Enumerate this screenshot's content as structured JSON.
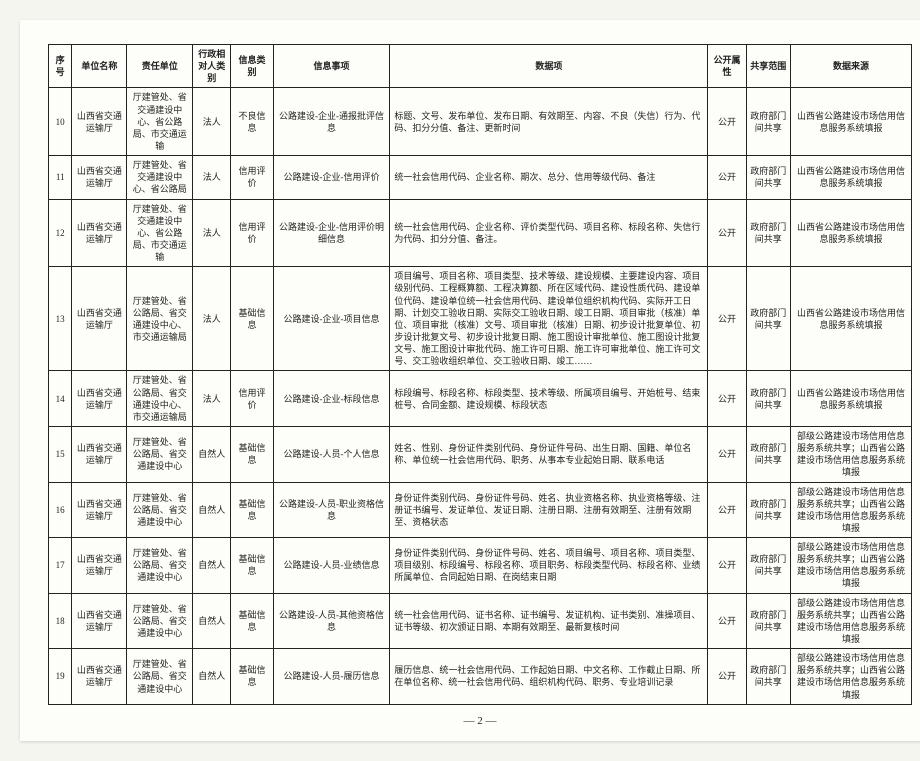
{
  "columns": [
    "序号",
    "单位名称",
    "责任单位",
    "行政相对人类别",
    "信息类别",
    "信息事项",
    "数据项",
    "公开属性",
    "共享范围",
    "数据来源"
  ],
  "rows": [
    {
      "seq": "10",
      "unit": "山西省交通运输厅",
      "resp": "厅建管处、省交通建设中心、省公路局、市交通运输",
      "ptype": "法人",
      "itype": "不良信息",
      "matter": "公路建设-企业-通报批评信息",
      "data": "标题、文号、发布单位、发布日期、有效期至、内容、不良（失信）行为、代码、扣分分值、备注、更新时间",
      "attr": "公开",
      "scope": "政府部门间共享",
      "src": "山西省公路建设市场信用信息服务系统填报"
    },
    {
      "seq": "11",
      "unit": "山西省交通运输厅",
      "resp": "厅建管处、省交通建设中心、省公路局",
      "ptype": "法人",
      "itype": "信用评价",
      "matter": "公路建设-企业-信用评价",
      "data": "统一社会信用代码、企业名称、期次、总分、信用等级代码、备注",
      "attr": "公开",
      "scope": "政府部门间共享",
      "src": "山西省公路建设市场信用信息服务系统填报"
    },
    {
      "seq": "12",
      "unit": "山西省交通运输厅",
      "resp": "厅建管处、省交通建设中心、省公路局、市交通运输",
      "ptype": "法人",
      "itype": "信用评价",
      "matter": "公路建设-企业-信用评价明细信息",
      "data": "统一社会信用代码、企业名称、评价类型代码、项目名称、标段名称、失信行为代码、扣分分值、备注。",
      "attr": "公开",
      "scope": "政府部门间共享",
      "src": "山西省公路建设市场信用信息服务系统填报"
    },
    {
      "seq": "13",
      "unit": "山西省交通运输厅",
      "resp": "厅建管处、省公路局、省交通建设中心、市交通运输局",
      "ptype": "法人",
      "itype": "基础信息",
      "matter": "公路建设-企业-项目信息",
      "data": "项目编号、项目名称、项目类型、技术等级、建设规模、主要建设内容、项目级别代码、工程概算额、工程决算额、所在区域代码、建设性质代码、建设单位代码、建设单位统一社会信用代码、建设单位组织机构代码、实际开工日期、计划交工验收日期、实际交工验收日期、竣工日期、项目审批（核准）单位、项目审批（核准）文号、项目审批（核准）日期、初步设计批复单位、初步设计批复文号、初步设计批复日期、施工图设计审批单位、施工图设计批复文号、施工图设计审批代码、施工许可日期、施工许可审批单位、施工许可文号、交工验收组织单位、交工验收日期、竣工……",
      "attr": "公开",
      "scope": "政府部门间共享",
      "src": "山西省公路建设市场信用信息服务系统填报"
    },
    {
      "seq": "14",
      "unit": "山西省交通运输厅",
      "resp": "厅建管处、省公路局、省交通建设中心、市交通运输局",
      "ptype": "法人",
      "itype": "信用评价",
      "matter": "公路建设-企业-标段信息",
      "data": "标段编号、标段名称、标段类型、技术等级、所属项目编号、开始桩号、结束桩号、合同金额、建设规模、标段状态",
      "attr": "公开",
      "scope": "政府部门间共享",
      "src": "山西省公路建设市场信用信息服务系统填报"
    },
    {
      "seq": "15",
      "unit": "山西省交通运输厅",
      "resp": "厅建管处、省公路局、省交通建设中心",
      "ptype": "自然人",
      "itype": "基础信息",
      "matter": "公路建设-人员-个人信息",
      "data": "姓名、性别、身份证件类别代码、身份证件号码、出生日期、国籍、单位名称、单位统一社会信用代码、职务、从事本专业起始日期、联系电话",
      "attr": "公开",
      "scope": "政府部门间共享",
      "src": "部级公路建设市场信用信息服务系统共享；山西省公路建设市场信用信息服务系统填报"
    },
    {
      "seq": "16",
      "unit": "山西省交通运输厅",
      "resp": "厅建管处、省公路局、省交通建设中心",
      "ptype": "自然人",
      "itype": "基础信息",
      "matter": "公路建设-人员-职业资格信息",
      "data": "身份证件类别代码、身份证件号码、姓名、执业资格名称、执业资格等级、注册证书编号、发证单位、发证日期、注册日期、注册有效期至、注册有效期至、资格状态",
      "attr": "公开",
      "scope": "政府部门间共享",
      "src": "部级公路建设市场信用信息服务系统共享；山西省公路建设市场信用信息服务系统填报"
    },
    {
      "seq": "17",
      "unit": "山西省交通运输厅",
      "resp": "厅建管处、省公路局、省交通建设中心",
      "ptype": "自然人",
      "itype": "基础信息",
      "matter": "公路建设-人员-业绩信息",
      "data": "身份证件类别代码、身份证件号码、姓名、项目编号、项目名称、项目类型、项目级别、标段编号、标段名称、项目职务、标段类型代码、标段名称、业绩所属单位、合同起始日期、在岗结束日期",
      "attr": "公开",
      "scope": "政府部门间共享",
      "src": "部级公路建设市场信用信息服务系统共享；山西省公路建设市场信用信息服务系统填报"
    },
    {
      "seq": "18",
      "unit": "山西省交通运输厅",
      "resp": "厅建管处、省公路局、省交通建设中心",
      "ptype": "自然人",
      "itype": "基础信息",
      "matter": "公路建设-人员-其他资格信息",
      "data": "统一社会信用代码、证书名称、证书编号、发证机构、证书类别、准操项目、证书等级、初次颁证日期、本期有效期至、最新复核时间",
      "attr": "公开",
      "scope": "政府部门间共享",
      "src": "部级公路建设市场信用信息服务系统共享；山西省公路建设市场信用信息服务系统填报"
    },
    {
      "seq": "19",
      "unit": "山西省交通运输厅",
      "resp": "厅建管处、省公路局、省交通建设中心",
      "ptype": "自然人",
      "itype": "基础信息",
      "matter": "公路建设-人员-履历信息",
      "data": "履历信息、统一社会信用代码、工作起始日期、中文名称、工作截止日期、所在单位名称、统一社会信用代码、组织机构代码、职务、专业培训记录",
      "attr": "公开",
      "scope": "政府部门间共享",
      "src": "部级公路建设市场信用信息服务系统共享；山西省公路建设市场信用信息服务系统填报"
    }
  ],
  "pageNumber": "— 2 —"
}
